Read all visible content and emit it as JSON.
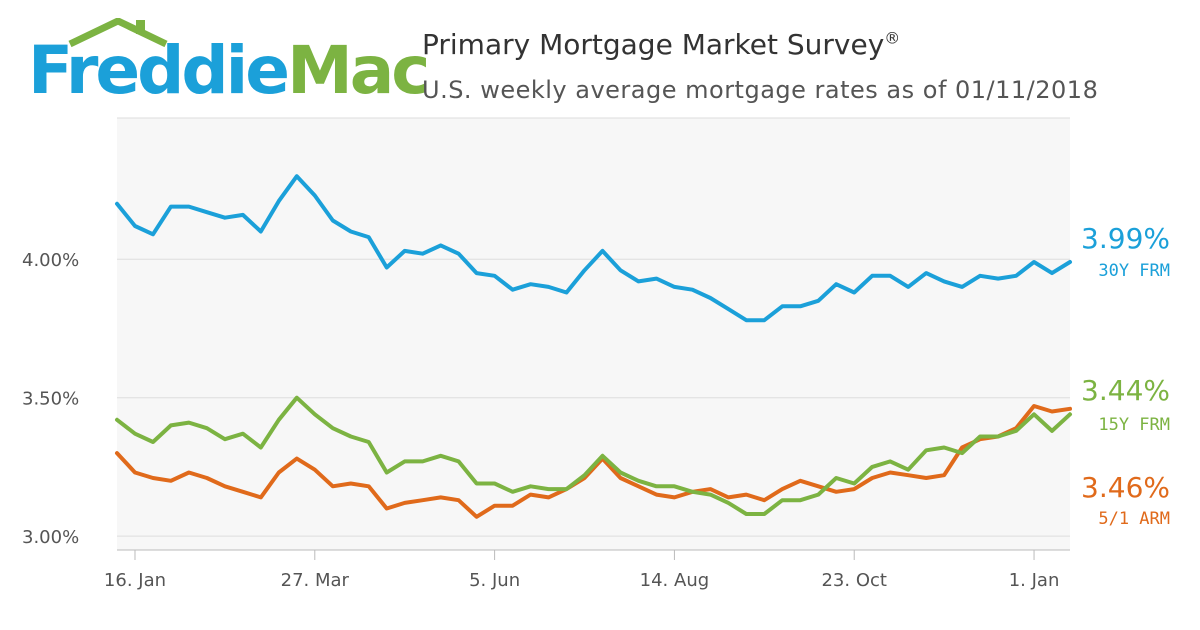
{
  "logo": {
    "word1": "Freddie",
    "word2": "Mac",
    "word1_color": "#1BA0D9",
    "word2_color": "#7CB342"
  },
  "header": {
    "title": "Primary Mortgage Market Survey",
    "title_mark": "®",
    "subtitle": "U.S. weekly average mortgage rates as of 01/11/2018"
  },
  "colors": {
    "plot_background": "#F7F7F7",
    "gridline": "#DDDDDD",
    "axis": "#BBBBBB"
  },
  "chart_data": {
    "type": "line",
    "title": "Primary Mortgage Market Survey",
    "subtitle": "U.S. weekly average mortgage rates as of 01/11/2018",
    "x_ticks": [
      "16. Jan",
      "27. Mar",
      "5. Jun",
      "14. Aug",
      "23. Oct",
      "1. Jan"
    ],
    "x_tick_week_index": [
      1,
      11,
      21,
      31,
      41,
      51
    ],
    "y_ticks": [
      "3.00%",
      "3.50%",
      "4.00%"
    ],
    "y_tick_values": [
      3.0,
      3.5,
      4.0
    ],
    "ylim": [
      2.95,
      4.51
    ],
    "grid": true,
    "series": [
      {
        "name": "30Y FRM",
        "latest": "3.99%",
        "color": "#1BA0D9",
        "values": [
          4.2,
          4.12,
          4.09,
          4.19,
          4.19,
          4.17,
          4.15,
          4.16,
          4.1,
          4.21,
          4.3,
          4.23,
          4.14,
          4.1,
          4.08,
          3.97,
          4.03,
          4.02,
          4.05,
          4.02,
          3.95,
          3.94,
          3.89,
          3.91,
          3.9,
          3.88,
          3.96,
          4.03,
          3.96,
          3.92,
          3.93,
          3.9,
          3.89,
          3.86,
          3.82,
          3.78,
          3.78,
          3.83,
          3.83,
          3.85,
          3.91,
          3.88,
          3.94,
          3.94,
          3.9,
          3.95,
          3.92,
          3.9,
          3.94,
          3.93,
          3.94,
          3.99,
          3.95,
          3.99
        ]
      },
      {
        "name": "15Y FRM",
        "latest": "3.44%",
        "color": "#7CB342",
        "values": [
          3.42,
          3.37,
          3.34,
          3.4,
          3.41,
          3.39,
          3.35,
          3.37,
          3.32,
          3.42,
          3.5,
          3.44,
          3.39,
          3.36,
          3.34,
          3.23,
          3.27,
          3.27,
          3.29,
          3.27,
          3.19,
          3.19,
          3.16,
          3.18,
          3.17,
          3.17,
          3.22,
          3.29,
          3.23,
          3.2,
          3.18,
          3.18,
          3.16,
          3.15,
          3.12,
          3.08,
          3.08,
          3.13,
          3.13,
          3.15,
          3.21,
          3.19,
          3.25,
          3.27,
          3.24,
          3.31,
          3.32,
          3.3,
          3.36,
          3.36,
          3.38,
          3.44,
          3.38,
          3.44
        ]
      },
      {
        "name": "5/1 ARM",
        "latest": "3.46%",
        "color": "#E06A1B",
        "values": [
          3.3,
          3.23,
          3.21,
          3.2,
          3.23,
          3.21,
          3.18,
          3.16,
          3.14,
          3.23,
          3.28,
          3.24,
          3.18,
          3.19,
          3.18,
          3.1,
          3.12,
          3.13,
          3.14,
          3.13,
          3.07,
          3.11,
          3.11,
          3.15,
          3.14,
          3.17,
          3.21,
          3.28,
          3.21,
          3.18,
          3.15,
          3.14,
          3.16,
          3.17,
          3.14,
          3.15,
          3.13,
          3.17,
          3.2,
          3.18,
          3.16,
          3.17,
          3.21,
          3.23,
          3.22,
          3.21,
          3.22,
          3.32,
          3.35,
          3.36,
          3.39,
          3.47,
          3.45,
          3.46
        ]
      }
    ]
  }
}
